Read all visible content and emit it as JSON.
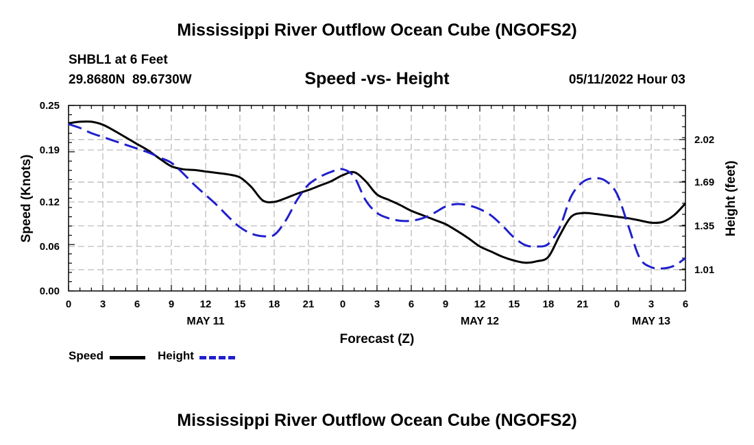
{
  "header": {
    "title": "Mississippi River Outflow Ocean Cube (NGOFS2)",
    "station": "SHBL1 at 6 Feet",
    "coords": "29.8680N  89.6730W",
    "datetime": "05/11/2022 Hour 03"
  },
  "legend": {
    "speed_label": "Speed",
    "height_label": "Height"
  },
  "footer": {
    "title": "Mississippi River Outflow Ocean Cube (NGOFS2)"
  },
  "colors": {
    "speed": "#000000",
    "height": "#1f1fcc",
    "grid": "#b4b4b4"
  },
  "chart_data": {
    "type": "line",
    "title": "Speed -vs- Height",
    "xlabel": "Forecast (Z)",
    "ylabel": "Speed (Knots)",
    "y2label": "Height (feet)",
    "xlim": [
      0,
      54
    ],
    "ylim": [
      0,
      0.25
    ],
    "y2lim": [
      0.845,
      2.285
    ],
    "x_ticks": [
      0,
      3,
      6,
      9,
      12,
      15,
      18,
      21,
      24,
      27,
      30,
      33,
      36,
      39,
      42,
      45,
      48,
      51,
      54
    ],
    "x_tick_labels": [
      "0",
      "3",
      "6",
      "9",
      "12",
      "15",
      "18",
      "21",
      "0",
      "3",
      "6",
      "9",
      "12",
      "15",
      "18",
      "21",
      "0",
      "3",
      "6"
    ],
    "date_labels": [
      {
        "x": 12,
        "label": "MAY 11"
      },
      {
        "x": 36,
        "label": "MAY 12"
      },
      {
        "x": 51,
        "label": "MAY 13"
      }
    ],
    "y_ticks": [
      0.0,
      0.06,
      0.12,
      0.19,
      0.25
    ],
    "y_tick_labels": [
      "0.00",
      "0.06",
      "0.12",
      "0.19",
      "0.25"
    ],
    "y2_ticks": [
      1.01,
      1.35,
      1.69,
      2.02
    ],
    "y2_tick_labels": [
      "1.01",
      "1.35",
      "1.69",
      "2.02"
    ],
    "grid": true,
    "series": [
      {
        "name": "Speed",
        "axis": "left",
        "style": "solid",
        "x": [
          0,
          1,
          2,
          3,
          4,
          5,
          6,
          7,
          8,
          9,
          10,
          11,
          12,
          13,
          14,
          15,
          16,
          17,
          18,
          19,
          20,
          21,
          22,
          23,
          24,
          25,
          26,
          27,
          28,
          29,
          30,
          31,
          32,
          33,
          34,
          35,
          36,
          37,
          38,
          39,
          40,
          41,
          42,
          43,
          44,
          45,
          46,
          47,
          48,
          49,
          50,
          51,
          52,
          53,
          54
        ],
        "values": [
          0.226,
          0.228,
          0.228,
          0.224,
          0.216,
          0.207,
          0.198,
          0.189,
          0.178,
          0.168,
          0.164,
          0.163,
          0.161,
          0.159,
          0.157,
          0.153,
          0.14,
          0.122,
          0.12,
          0.125,
          0.131,
          0.136,
          0.142,
          0.148,
          0.156,
          0.16,
          0.148,
          0.13,
          0.123,
          0.116,
          0.108,
          0.102,
          0.096,
          0.09,
          0.081,
          0.071,
          0.06,
          0.053,
          0.046,
          0.041,
          0.038,
          0.04,
          0.046,
          0.075,
          0.1,
          0.105,
          0.104,
          0.102,
          0.1,
          0.098,
          0.095,
          0.092,
          0.093,
          0.102,
          0.118
        ]
      },
      {
        "name": "Height",
        "axis": "right",
        "style": "dashed",
        "x": [
          0,
          1,
          2,
          3,
          4,
          5,
          6,
          7,
          8,
          9,
          10,
          11,
          12,
          13,
          14,
          15,
          16,
          17,
          18,
          19,
          20,
          21,
          22,
          23,
          24,
          25,
          26,
          27,
          28,
          29,
          30,
          31,
          32,
          33,
          34,
          35,
          36,
          37,
          38,
          39,
          40,
          41,
          42,
          43,
          44,
          45,
          46,
          47,
          48,
          49,
          50,
          51,
          52,
          53,
          54
        ],
        "values": [
          2.14,
          2.11,
          2.07,
          2.04,
          2.01,
          1.98,
          1.95,
          1.92,
          1.88,
          1.84,
          1.76,
          1.67,
          1.59,
          1.51,
          1.42,
          1.34,
          1.29,
          1.27,
          1.28,
          1.39,
          1.55,
          1.67,
          1.73,
          1.77,
          1.79,
          1.73,
          1.55,
          1.45,
          1.41,
          1.39,
          1.39,
          1.41,
          1.45,
          1.5,
          1.52,
          1.51,
          1.48,
          1.43,
          1.35,
          1.26,
          1.2,
          1.19,
          1.21,
          1.34,
          1.58,
          1.69,
          1.72,
          1.7,
          1.6,
          1.35,
          1.1,
          1.03,
          1.02,
          1.04,
          1.1
        ]
      }
    ]
  }
}
